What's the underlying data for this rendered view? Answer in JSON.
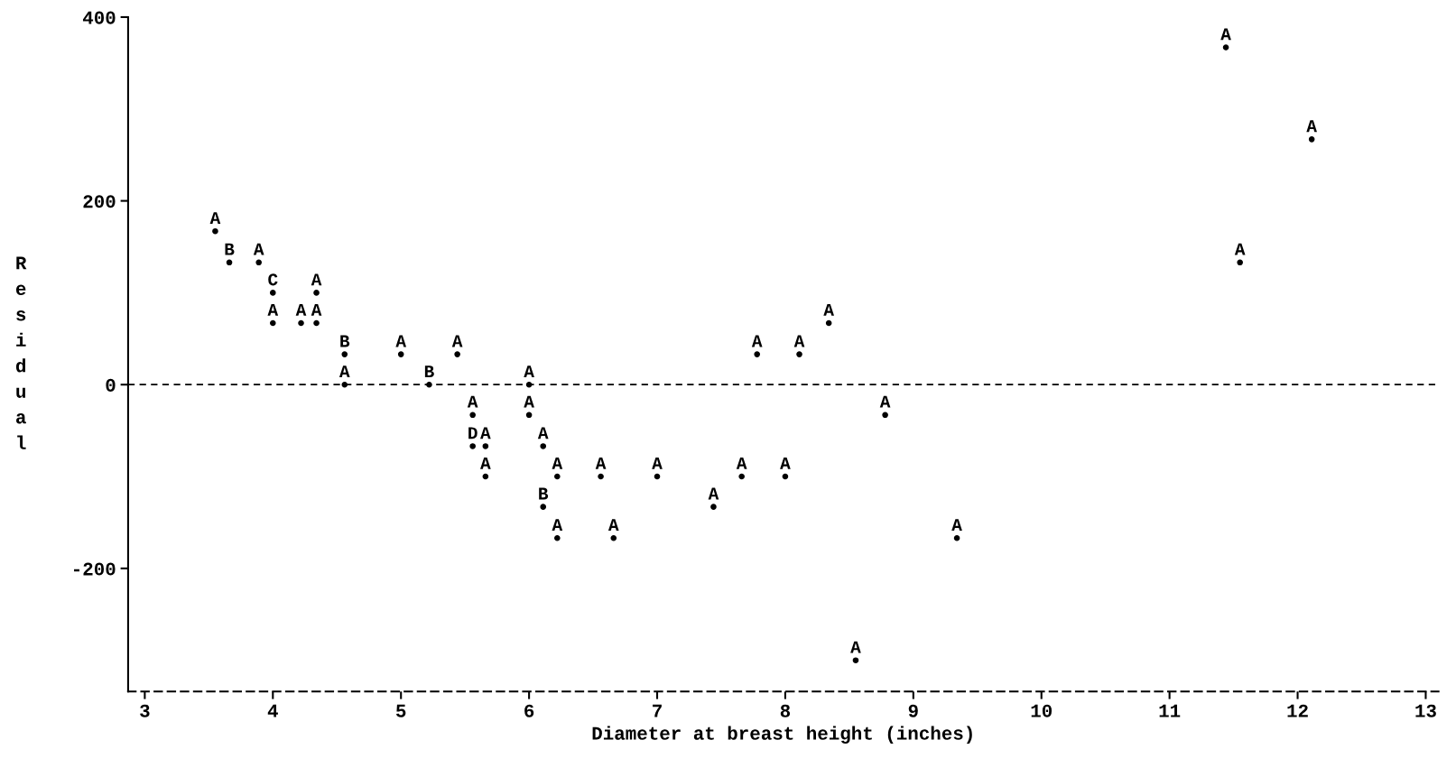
{
  "chart_data": {
    "type": "scatter",
    "xlabel": "Diameter at breast height (inches)",
    "ylabel": "Residual",
    "xlim": [
      2.87,
      13.1
    ],
    "ylim": [
      -334,
      400
    ],
    "xticks": [
      3,
      4,
      5,
      6,
      7,
      8,
      9,
      10,
      11,
      12,
      13
    ],
    "yticks": [
      -200,
      0,
      200,
      400
    ],
    "grid": false,
    "legend": false,
    "ref_lines": [
      {
        "axis": "y",
        "value": 0,
        "line_style": "dashed",
        "color": "#000000"
      }
    ],
    "series": [
      {
        "color": "#000000",
        "x": [
          11.44,
          12.11,
          3.55,
          3.66,
          3.89,
          11.55,
          4.0,
          4.34,
          8.34,
          4.0,
          4.22,
          4.34,
          4.56,
          5.0,
          5.44,
          7.78,
          8.11,
          4.56,
          5.22,
          6.0,
          5.56,
          6.0,
          8.78,
          5.56,
          5.66,
          6.11,
          5.66,
          6.22,
          6.56,
          7.0,
          7.66,
          8.0,
          6.11,
          7.44,
          6.22,
          6.66,
          9.34,
          8.55
        ],
        "values": [
          367,
          267,
          167,
          133,
          133,
          133,
          100,
          100,
          67,
          67,
          67,
          67,
          33,
          33,
          33,
          33,
          33,
          0,
          0,
          0,
          -33,
          -33,
          -33,
          -67,
          -67,
          -67,
          -100,
          -100,
          -100,
          -100,
          -100,
          -100,
          -133,
          -133,
          -167,
          -167,
          -167,
          -300
        ],
        "value_labels": [
          "A",
          "A",
          "A",
          "B",
          "A",
          "A",
          "C",
          "A",
          "A",
          "A",
          "A",
          "A",
          "B",
          "A",
          "A",
          "A",
          "A",
          "A",
          "B",
          "A",
          "A",
          "A",
          "A",
          "D",
          "A",
          "A",
          "A",
          "A",
          "A",
          "A",
          "A",
          "A",
          "B",
          "A",
          "A",
          "A",
          "A",
          "A"
        ]
      }
    ]
  }
}
